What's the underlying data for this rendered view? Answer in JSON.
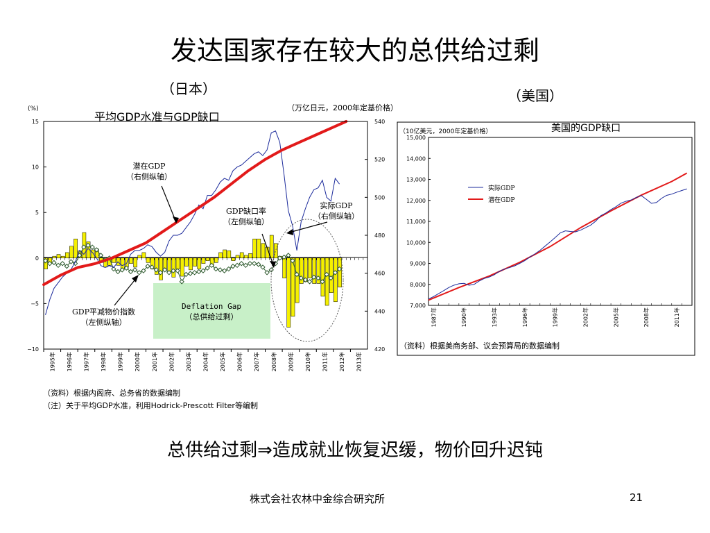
{
  "slide": {
    "title": "发达国家存在较大的总供给过剩",
    "japan_heading": "（日本）",
    "us_heading": "（美国）",
    "conclusion": "总供给过剩⇒造成就业恢复迟缓，物价回升迟钝",
    "company": "株式会社农林中金综合研究所",
    "page": "21"
  },
  "chart_data": [
    {
      "type": "bar",
      "title": "平均GDP水准与GDP缺口",
      "left_unit": "(%)",
      "right_unit": "（万亿日元，2000年定基价格）",
      "ylim_left": [
        -10,
        15
      ],
      "ylim_right": [
        420,
        540
      ],
      "left_ticks": [
        "15",
        "10",
        "5",
        "0",
        "−5",
        "−10"
      ],
      "right_ticks": [
        "540",
        "520",
        "500",
        "480",
        "460",
        "440",
        "420"
      ],
      "x_ticks": [
        "1995年",
        "1996年",
        "1997年",
        "1998年",
        "1999年",
        "2000年",
        "2001年",
        "2002年",
        "2003年",
        "2004年",
        "2005年",
        "2006年",
        "2007年",
        "2008年",
        "2009年",
        "2010年",
        "2011年",
        "2012年",
        "2013年"
      ],
      "annotations": {
        "potential": "潜在GDP\n（右侧纵轴）",
        "gap": "GDP缺口率\n（左侧纵轴）",
        "actual": "实际GDP\n（右侧纵轴）",
        "deflator": "GDP平减物价指数\n（左侧纵轴）",
        "deflation_gap": "Deflation Gap\n（总供给过剩）"
      },
      "notes": [
        "（资料）根据内阁府、总务省的数据编制",
        "（注）关于平均GDP水准，利用Hodrick-Prescott Filter等编制"
      ],
      "series": [
        {
          "name": "GDP缺口率",
          "axis": "left",
          "kind": "bar",
          "x": [
            1995,
            1995.25,
            1995.5,
            1995.75,
            1996,
            1996.25,
            1996.5,
            1996.75,
            1997,
            1997.25,
            1997.5,
            1997.75,
            1998,
            1998.25,
            1998.5,
            1998.75,
            1999,
            1999.25,
            1999.5,
            1999.75,
            2000,
            2000.25,
            2000.5,
            2000.75,
            2001,
            2001.25,
            2001.5,
            2001.75,
            2002,
            2002.25,
            2002.5,
            2002.75,
            2003,
            2003.25,
            2003.5,
            2003.75,
            2004,
            2004.25,
            2004.5,
            2004.75,
            2005,
            2005.25,
            2005.5,
            2005.75,
            2006,
            2006.25,
            2006.5,
            2006.75,
            2007,
            2007.25,
            2007.5,
            2007.75,
            2008,
            2008.25,
            2008.5,
            2008.75,
            2009,
            2009.25,
            2009.5,
            2009.75,
            2010,
            2010.25,
            2010.5,
            2010.75,
            2011,
            2011.25,
            2011.5,
            2011.75,
            2012,
            2012.25
          ],
          "values": [
            -1.2,
            -0.6,
            0.2,
            0.4,
            0.2,
            0.6,
            1.3,
            2.1,
            0.8,
            2.8,
            1.8,
            0.9,
            1.0,
            -0.5,
            -1.0,
            -0.8,
            -0.5,
            -0.8,
            -1.3,
            -1.0,
            -0.6,
            -1.0,
            0.3,
            0.6,
            -0.5,
            -1.2,
            -1.8,
            -2.4,
            -1.2,
            -1.6,
            -2.1,
            -1.2,
            -2.0,
            -0.9,
            -1.3,
            -0.9,
            -1.2,
            -0.6,
            -0.3,
            -0.9,
            -0.5,
            0.6,
            0.9,
            0.8,
            -0.3,
            0.3,
            0.6,
            0.3,
            0.5,
            2.1,
            2.1,
            1.6,
            1.2,
            2.5,
            1.6,
            0.2,
            -2.2,
            -7.6,
            -6.4,
            -4.9,
            -2.8,
            -2.6,
            -2.2,
            -2.8,
            -2.8,
            -4.2,
            -5.2,
            -3.8,
            -4.8,
            -3.2
          ]
        },
        {
          "name": "GDP平减物价指数",
          "axis": "left",
          "kind": "line-diamond",
          "x": [
            1995,
            1995.25,
            1995.5,
            1995.75,
            1996,
            1996.25,
            1996.5,
            1996.75,
            1997,
            1997.25,
            1997.5,
            1997.75,
            1998,
            1998.25,
            1998.5,
            1998.75,
            1999,
            1999.25,
            1999.5,
            1999.75,
            2000,
            2000.25,
            2000.5,
            2000.75,
            2001,
            2001.25,
            2001.5,
            2001.75,
            2002,
            2002.25,
            2002.5,
            2002.75,
            2003,
            2003.25,
            2003.5,
            2003.75,
            2004,
            2004.25,
            2004.5,
            2004.75,
            2005,
            2005.25,
            2005.5,
            2005.75,
            2006,
            2006.25,
            2006.5,
            2006.75,
            2007,
            2007.25,
            2007.5,
            2007.75,
            2008,
            2008.25,
            2008.5,
            2008.75,
            2009,
            2009.25,
            2009.5,
            2009.75,
            2010,
            2010.25,
            2010.5,
            2010.75,
            2011,
            2011.25,
            2011.5,
            2011.75,
            2012,
            2012.25
          ],
          "values": [
            -0.3,
            -0.6,
            -0.5,
            -0.8,
            -0.6,
            -0.9,
            -0.4,
            -0.6,
            0.3,
            1.2,
            1.4,
            1.2,
            0.9,
            0.3,
            -0.2,
            0.0,
            -1.2,
            -1.5,
            -1.3,
            -1.1,
            -1.5,
            -1.3,
            -1.6,
            -1.4,
            -0.9,
            -1.0,
            -1.3,
            -1.6,
            -1.3,
            -1.6,
            -1.4,
            -1.4,
            -2.6,
            -1.8,
            -1.7,
            -1.6,
            -1.5,
            -1.4,
            -1.1,
            -0.8,
            -1.2,
            -1.3,
            -1.4,
            -1.2,
            -0.9,
            -0.8,
            -0.6,
            -0.8,
            -0.6,
            -0.6,
            -0.7,
            -1.0,
            -1.6,
            -1.3,
            -0.6,
            0.0,
            0.1,
            0.3,
            -0.3,
            -1.8,
            -2.2,
            -2.4,
            -2.6,
            -2.1,
            -2.2,
            -2.6,
            -1.8,
            -2.2,
            -1.6,
            -1.2
          ]
        },
        {
          "name": "实际GDP",
          "axis": "right",
          "kind": "line",
          "x": [
            1995,
            1995.25,
            1995.5,
            1995.75,
            1996,
            1996.25,
            1996.5,
            1996.75,
            1997,
            1997.25,
            1997.5,
            1997.75,
            1998,
            1998.25,
            1998.5,
            1998.75,
            1999,
            1999.25,
            1999.5,
            1999.75,
            2000,
            2000.25,
            2000.5,
            2000.75,
            2001,
            2001.25,
            2001.5,
            2001.75,
            2002,
            2002.25,
            2002.5,
            2002.75,
            2003,
            2003.25,
            2003.5,
            2003.75,
            2004,
            2004.25,
            2004.5,
            2004.75,
            2005,
            2005.25,
            2005.5,
            2005.75,
            2006,
            2006.25,
            2006.5,
            2006.75,
            2007,
            2007.25,
            2007.5,
            2007.75,
            2008,
            2008.25,
            2008.5,
            2008.75,
            2009,
            2009.25,
            2009.5,
            2009.75,
            2010,
            2010.25,
            2010.5,
            2010.75,
            2011,
            2011.25,
            2011.5,
            2011.75,
            2012,
            2012.25
          ],
          "values": [
            438,
            446,
            452,
            455,
            458,
            460,
            462,
            466,
            472,
            470,
            473,
            471,
            468,
            464,
            463,
            464,
            463,
            466,
            464,
            465,
            470,
            472,
            472,
            473,
            475,
            474,
            471,
            469,
            471,
            477,
            480,
            480,
            481,
            484,
            487,
            491,
            496,
            494,
            501,
            501,
            504,
            508,
            510,
            509,
            514,
            516,
            517,
            519,
            521,
            523,
            524,
            522,
            525,
            534,
            535,
            529,
            512,
            493,
            485,
            472,
            487,
            494,
            500,
            504,
            505,
            509,
            500,
            498,
            510,
            507
          ]
        },
        {
          "name": "潜在GDP",
          "axis": "right",
          "kind": "line-thick",
          "x": [
            1995,
            1996,
            1997,
            1998,
            1999,
            2000,
            2001,
            2002,
            2003,
            2004,
            2005,
            2006,
            2007,
            2008,
            2009,
            2010,
            2011,
            2012,
            2012.75
          ],
          "values": [
            454,
            459,
            463,
            465,
            468,
            472,
            476,
            482,
            488,
            494,
            500,
            507,
            514,
            520,
            525,
            529,
            533,
            537,
            540
          ]
        }
      ]
    },
    {
      "type": "line",
      "title": "美国的GDP缺口",
      "unit": "（10亿美元，2000年定基价格）",
      "ylim": [
        7000,
        15000
      ],
      "y_ticks": [
        "15,000",
        "14,000",
        "13,000",
        "12,000",
        "11,000",
        "10,000",
        "9,000",
        "8,000",
        "7,000"
      ],
      "x_ticks": [
        "1987年",
        "1990年",
        "1993年",
        "1996年",
        "1999年",
        "2002年",
        "2005年",
        "2008年",
        "2011年"
      ],
      "note": "（资料）根据美商务部、议会预算局的数据编制",
      "series": [
        {
          "name": "实际GDP",
          "color": "#1b2a9b",
          "x": [
            1987,
            1987.5,
            1988,
            1988.5,
            1989,
            1989.5,
            1990,
            1990.5,
            1991,
            1991.5,
            1992,
            1992.5,
            1993,
            1993.5,
            1994,
            1994.5,
            1995,
            1995.5,
            1996,
            1996.5,
            1997,
            1997.5,
            1998,
            1998.5,
            1999,
            1999.5,
            2000,
            2000.5,
            2001,
            2001.5,
            2002,
            2002.5,
            2003,
            2003.5,
            2004,
            2004.5,
            2005,
            2005.5,
            2006,
            2006.5,
            2007,
            2007.5,
            2008,
            2008.5,
            2009,
            2009.5,
            2010,
            2010.5,
            2011,
            2011.5,
            2012,
            2012.5
          ],
          "values": [
            7300,
            7420,
            7560,
            7700,
            7850,
            7960,
            8030,
            8050,
            7960,
            8000,
            8160,
            8280,
            8350,
            8460,
            8620,
            8730,
            8800,
            8880,
            9000,
            9130,
            9300,
            9450,
            9620,
            9820,
            10020,
            10230,
            10450,
            10550,
            10520,
            10500,
            10580,
            10700,
            10820,
            11010,
            11270,
            11400,
            11560,
            11700,
            11870,
            11960,
            12020,
            12140,
            12230,
            12050,
            11860,
            11900,
            12100,
            12240,
            12300,
            12390,
            12470,
            12550
          ]
        },
        {
          "name": "潜在GDP",
          "color": "#e21a1a",
          "x": [
            1987,
            1990,
            1993,
            1996,
            1999,
            2002,
            2005,
            2008,
            2011,
            2012.5
          ],
          "values": [
            7250,
            7850,
            8400,
            9050,
            9800,
            10700,
            11500,
            12250,
            12900,
            13300
          ]
        }
      ]
    }
  ]
}
